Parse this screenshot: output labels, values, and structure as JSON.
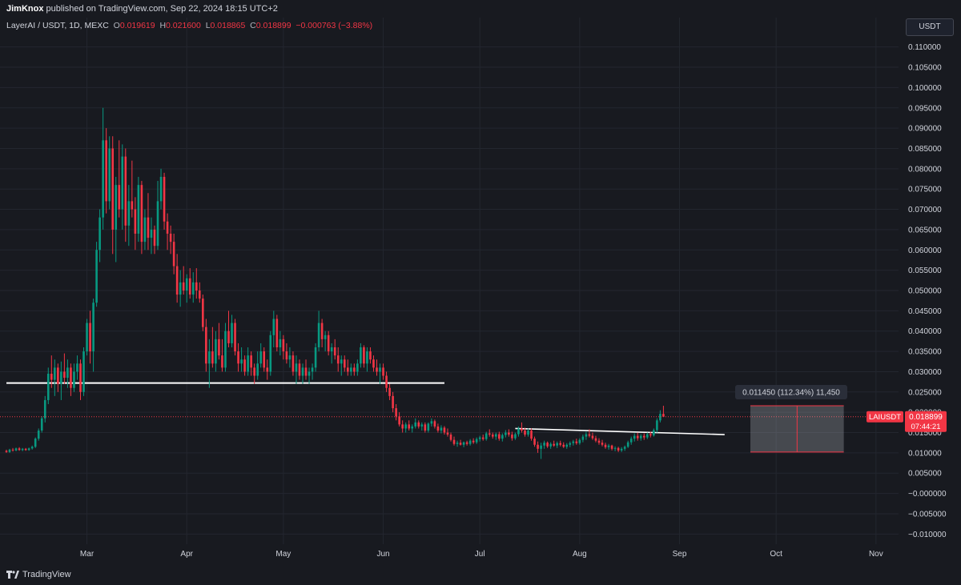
{
  "header": {
    "publisher": "JimKnox",
    "published_text": "published on TradingView.com, Sep 22, 2024 18:15 UTC+2"
  },
  "legend": {
    "symbol_text": "LayerAI / USDT, 1D, MEXC",
    "o_label": "O",
    "o_value": "0.019619",
    "h_label": "H",
    "h_value": "0.021600",
    "l_label": "L",
    "l_value": "0.018865",
    "c_label": "C",
    "c_value": "0.018899",
    "change": "−0.000763 (−3.88%)"
  },
  "currency_button": "USDT",
  "footer": {
    "brand": "TradingView"
  },
  "colors": {
    "background": "#181a20",
    "up": "#089981",
    "down": "#f23645",
    "grid": "#23262f",
    "axis_text": "#d1d4dc",
    "line": "#ffffff"
  },
  "chart_data": {
    "type": "candlestick",
    "symbol": "LAIUSDT",
    "timeframe": "1D",
    "exchange": "MEXC",
    "x_range": [
      "2024-02-05",
      "2024-11-08"
    ],
    "y_range": [
      -0.0125,
      0.1125
    ],
    "y_ticks": [
      0.11,
      0.105,
      0.1,
      0.095,
      0.09,
      0.085,
      0.08,
      0.075,
      0.07,
      0.065,
      0.06,
      0.055,
      0.05,
      0.045,
      0.04,
      0.035,
      0.03,
      0.025,
      0.02,
      0.015,
      0.01,
      0.005,
      0.0,
      -0.005,
      -0.01
    ],
    "y_tick_labels": [
      "0.110000",
      "0.105000",
      "0.100000",
      "0.095000",
      "0.090000",
      "0.085000",
      "0.080000",
      "0.075000",
      "0.070000",
      "0.065000",
      "0.060000",
      "0.055000",
      "0.050000",
      "0.045000",
      "0.040000",
      "0.035000",
      "0.030000",
      "0.025000",
      "0.020000",
      "0.015000",
      "0.010000",
      "0.005000",
      "−0.000000",
      "−0.005000",
      "−0.010000"
    ],
    "x_ticks": [
      {
        "label": "Mar",
        "date": "2024-03-01"
      },
      {
        "label": "Apr",
        "date": "2024-04-01"
      },
      {
        "label": "May",
        "date": "2024-05-01"
      },
      {
        "label": "Jun",
        "date": "2024-06-01"
      },
      {
        "label": "Jul",
        "date": "2024-07-01"
      },
      {
        "label": "Aug",
        "date": "2024-08-01"
      },
      {
        "label": "Sep",
        "date": "2024-09-01"
      },
      {
        "label": "Oct",
        "date": "2024-10-01"
      },
      {
        "label": "Nov",
        "date": "2024-11-01"
      }
    ],
    "first_candle_date": "2024-02-05",
    "candles": [
      [
        0.0105,
        0.0108,
        0.01,
        0.0102
      ],
      [
        0.0102,
        0.011,
        0.01,
        0.0108
      ],
      [
        0.0108,
        0.0112,
        0.0103,
        0.0106
      ],
      [
        0.0106,
        0.0113,
        0.0104,
        0.0111
      ],
      [
        0.0111,
        0.0114,
        0.0105,
        0.0107
      ],
      [
        0.0107,
        0.0112,
        0.0104,
        0.011
      ],
      [
        0.011,
        0.0112,
        0.0105,
        0.0107
      ],
      [
        0.0107,
        0.0113,
        0.0105,
        0.0111
      ],
      [
        0.0111,
        0.0118,
        0.0108,
        0.0115
      ],
      [
        0.0115,
        0.0138,
        0.0112,
        0.0135
      ],
      [
        0.0135,
        0.016,
        0.013,
        0.0155
      ],
      [
        0.0155,
        0.019,
        0.015,
        0.0185
      ],
      [
        0.0185,
        0.024,
        0.0175,
        0.023
      ],
      [
        0.023,
        0.031,
        0.022,
        0.0295
      ],
      [
        0.0295,
        0.034,
        0.026,
        0.028
      ],
      [
        0.028,
        0.033,
        0.024,
        0.031
      ],
      [
        0.031,
        0.032,
        0.025,
        0.027
      ],
      [
        0.027,
        0.0325,
        0.023,
        0.03
      ],
      [
        0.03,
        0.0345,
        0.027,
        0.0285
      ],
      [
        0.0285,
        0.033,
        0.026,
        0.031
      ],
      [
        0.031,
        0.032,
        0.024,
        0.026
      ],
      [
        0.026,
        0.032,
        0.025,
        0.03
      ],
      [
        0.03,
        0.034,
        0.028,
        0.032
      ],
      [
        0.032,
        0.033,
        0.023,
        0.025
      ],
      [
        0.025,
        0.036,
        0.024,
        0.035
      ],
      [
        0.035,
        0.043,
        0.034,
        0.042
      ],
      [
        0.042,
        0.045,
        0.032,
        0.035
      ],
      [
        0.035,
        0.048,
        0.03,
        0.047
      ],
      [
        0.047,
        0.062,
        0.046,
        0.06
      ],
      [
        0.06,
        0.07,
        0.057,
        0.068
      ],
      [
        0.068,
        0.095,
        0.065,
        0.087
      ],
      [
        0.087,
        0.09,
        0.069,
        0.072
      ],
      [
        0.072,
        0.088,
        0.07,
        0.085
      ],
      [
        0.085,
        0.088,
        0.059,
        0.065
      ],
      [
        0.065,
        0.078,
        0.057,
        0.076
      ],
      [
        0.076,
        0.087,
        0.068,
        0.07
      ],
      [
        0.07,
        0.086,
        0.065,
        0.083
      ],
      [
        0.083,
        0.085,
        0.062,
        0.066
      ],
      [
        0.066,
        0.076,
        0.061,
        0.072
      ],
      [
        0.072,
        0.082,
        0.068,
        0.07
      ],
      [
        0.07,
        0.073,
        0.06,
        0.064
      ],
      [
        0.064,
        0.078,
        0.062,
        0.076
      ],
      [
        0.076,
        0.077,
        0.059,
        0.062
      ],
      [
        0.062,
        0.07,
        0.06,
        0.068
      ],
      [
        0.068,
        0.074,
        0.06,
        0.063
      ],
      [
        0.063,
        0.068,
        0.059,
        0.065
      ],
      [
        0.065,
        0.066,
        0.059,
        0.061
      ],
      [
        0.061,
        0.077,
        0.06,
        0.072
      ],
      [
        0.072,
        0.08,
        0.07,
        0.078
      ],
      [
        0.078,
        0.079,
        0.065,
        0.067
      ],
      [
        0.067,
        0.069,
        0.06,
        0.064
      ],
      [
        0.064,
        0.066,
        0.059,
        0.062
      ],
      [
        0.062,
        0.064,
        0.054,
        0.056
      ],
      [
        0.056,
        0.059,
        0.047,
        0.049
      ],
      [
        0.049,
        0.055,
        0.046,
        0.052
      ],
      [
        0.052,
        0.056,
        0.049,
        0.05
      ],
      [
        0.05,
        0.054,
        0.047,
        0.053
      ],
      [
        0.053,
        0.0555,
        0.048,
        0.049
      ],
      [
        0.049,
        0.0545,
        0.047,
        0.052
      ],
      [
        0.052,
        0.0555,
        0.048,
        0.05
      ],
      [
        0.05,
        0.052,
        0.047,
        0.048
      ],
      [
        0.048,
        0.049,
        0.04,
        0.041
      ],
      [
        0.041,
        0.043,
        0.03,
        0.032
      ],
      [
        0.032,
        0.038,
        0.026,
        0.035
      ],
      [
        0.035,
        0.041,
        0.031,
        0.032
      ],
      [
        0.032,
        0.04,
        0.03,
        0.038
      ],
      [
        0.038,
        0.042,
        0.033,
        0.034
      ],
      [
        0.034,
        0.038,
        0.03,
        0.031
      ],
      [
        0.031,
        0.042,
        0.03,
        0.04
      ],
      [
        0.04,
        0.045,
        0.036,
        0.037
      ],
      [
        0.037,
        0.044,
        0.036,
        0.042
      ],
      [
        0.042,
        0.043,
        0.034,
        0.035
      ],
      [
        0.035,
        0.037,
        0.03,
        0.032
      ],
      [
        0.032,
        0.036,
        0.03,
        0.033
      ],
      [
        0.033,
        0.034,
        0.029,
        0.03
      ],
      [
        0.03,
        0.036,
        0.029,
        0.034
      ],
      [
        0.034,
        0.035,
        0.029,
        0.031
      ],
      [
        0.031,
        0.032,
        0.027,
        0.029
      ],
      [
        0.029,
        0.035,
        0.028,
        0.032
      ],
      [
        0.032,
        0.037,
        0.031,
        0.035
      ],
      [
        0.035,
        0.036,
        0.03,
        0.031
      ],
      [
        0.031,
        0.033,
        0.028,
        0.03
      ],
      [
        0.03,
        0.04,
        0.029,
        0.039
      ],
      [
        0.039,
        0.045,
        0.036,
        0.043
      ],
      [
        0.043,
        0.044,
        0.035,
        0.036
      ],
      [
        0.036,
        0.04,
        0.034,
        0.038
      ],
      [
        0.038,
        0.039,
        0.033,
        0.035
      ],
      [
        0.035,
        0.037,
        0.032,
        0.033
      ],
      [
        0.033,
        0.036,
        0.031,
        0.034
      ],
      [
        0.034,
        0.035,
        0.029,
        0.03
      ],
      [
        0.03,
        0.034,
        0.027,
        0.032
      ],
      [
        0.032,
        0.033,
        0.028,
        0.029
      ],
      [
        0.029,
        0.032,
        0.027,
        0.031
      ],
      [
        0.031,
        0.033,
        0.028,
        0.029
      ],
      [
        0.029,
        0.031,
        0.027,
        0.03
      ],
      [
        0.03,
        0.032,
        0.028,
        0.031
      ],
      [
        0.031,
        0.037,
        0.03,
        0.036
      ],
      [
        0.036,
        0.045,
        0.035,
        0.042
      ],
      [
        0.042,
        0.043,
        0.036,
        0.038
      ],
      [
        0.038,
        0.04,
        0.035,
        0.039
      ],
      [
        0.039,
        0.04,
        0.034,
        0.035
      ],
      [
        0.035,
        0.037,
        0.032,
        0.036
      ],
      [
        0.036,
        0.038,
        0.033,
        0.034
      ],
      [
        0.034,
        0.036,
        0.03,
        0.032
      ],
      [
        0.032,
        0.034,
        0.029,
        0.033
      ],
      [
        0.033,
        0.034,
        0.03,
        0.031
      ],
      [
        0.031,
        0.033,
        0.029,
        0.03
      ],
      [
        0.03,
        0.032,
        0.029,
        0.031
      ],
      [
        0.031,
        0.032,
        0.029,
        0.03
      ],
      [
        0.03,
        0.033,
        0.029,
        0.032
      ],
      [
        0.032,
        0.037,
        0.031,
        0.036
      ],
      [
        0.036,
        0.0365,
        0.031,
        0.032
      ],
      [
        0.032,
        0.036,
        0.03,
        0.035
      ],
      [
        0.035,
        0.036,
        0.032,
        0.033
      ],
      [
        0.033,
        0.034,
        0.03,
        0.031
      ],
      [
        0.031,
        0.033,
        0.029,
        0.03
      ],
      [
        0.03,
        0.032,
        0.027,
        0.031
      ],
      [
        0.031,
        0.032,
        0.028,
        0.029
      ],
      [
        0.029,
        0.03,
        0.025,
        0.026
      ],
      [
        0.026,
        0.027,
        0.023,
        0.024
      ],
      [
        0.024,
        0.025,
        0.02,
        0.021
      ],
      [
        0.021,
        0.022,
        0.018,
        0.019
      ],
      [
        0.019,
        0.02,
        0.0165,
        0.017
      ],
      [
        0.017,
        0.018,
        0.015,
        0.016
      ],
      [
        0.016,
        0.0175,
        0.015,
        0.017
      ],
      [
        0.017,
        0.018,
        0.0155,
        0.016
      ],
      [
        0.016,
        0.017,
        0.015,
        0.0165
      ],
      [
        0.0165,
        0.0185,
        0.016,
        0.0175
      ],
      [
        0.0175,
        0.018,
        0.016,
        0.0165
      ],
      [
        0.0165,
        0.0175,
        0.0155,
        0.017
      ],
      [
        0.017,
        0.0175,
        0.015,
        0.0155
      ],
      [
        0.0155,
        0.0175,
        0.015,
        0.0172
      ],
      [
        0.0172,
        0.0185,
        0.0165,
        0.0178
      ],
      [
        0.0178,
        0.0182,
        0.016,
        0.0165
      ],
      [
        0.0165,
        0.0172,
        0.015,
        0.0155
      ],
      [
        0.0155,
        0.0168,
        0.0148,
        0.0162
      ],
      [
        0.0162,
        0.0166,
        0.0145,
        0.015
      ],
      [
        0.015,
        0.016,
        0.014,
        0.0145
      ],
      [
        0.0145,
        0.015,
        0.0128,
        0.0132
      ],
      [
        0.0132,
        0.014,
        0.0118,
        0.0122
      ],
      [
        0.0122,
        0.013,
        0.0115,
        0.0125
      ],
      [
        0.0125,
        0.0132,
        0.0118,
        0.012
      ],
      [
        0.012,
        0.0128,
        0.0114,
        0.0126
      ],
      [
        0.0126,
        0.013,
        0.0118,
        0.0122
      ],
      [
        0.0122,
        0.0134,
        0.0118,
        0.013
      ],
      [
        0.013,
        0.0136,
        0.0122,
        0.0126
      ],
      [
        0.0126,
        0.0138,
        0.0122,
        0.0134
      ],
      [
        0.0134,
        0.0142,
        0.0128,
        0.0138
      ],
      [
        0.0138,
        0.0145,
        0.013,
        0.0134
      ],
      [
        0.0134,
        0.0152,
        0.013,
        0.0148
      ],
      [
        0.0148,
        0.0158,
        0.014,
        0.0145
      ],
      [
        0.0145,
        0.015,
        0.0135,
        0.014
      ],
      [
        0.014,
        0.015,
        0.0132,
        0.0146
      ],
      [
        0.0146,
        0.0152,
        0.013,
        0.0135
      ],
      [
        0.0135,
        0.0148,
        0.0128,
        0.0144
      ],
      [
        0.0144,
        0.0156,
        0.0138,
        0.015
      ],
      [
        0.015,
        0.0158,
        0.014,
        0.0145
      ],
      [
        0.0145,
        0.0152,
        0.013,
        0.0136
      ],
      [
        0.0136,
        0.015,
        0.0132,
        0.0146
      ],
      [
        0.0146,
        0.0165,
        0.014,
        0.016
      ],
      [
        0.016,
        0.0175,
        0.015,
        0.0155
      ],
      [
        0.0155,
        0.0162,
        0.014,
        0.0145
      ],
      [
        0.0145,
        0.016,
        0.014,
        0.0155
      ],
      [
        0.0155,
        0.016,
        0.013,
        0.0135
      ],
      [
        0.0135,
        0.014,
        0.0115,
        0.012
      ],
      [
        0.012,
        0.0128,
        0.01,
        0.011
      ],
      [
        0.011,
        0.0125,
        0.0085,
        0.0118
      ],
      [
        0.0118,
        0.013,
        0.011,
        0.0125
      ],
      [
        0.0125,
        0.0128,
        0.0112,
        0.0116
      ],
      [
        0.0116,
        0.0126,
        0.011,
        0.0122
      ],
      [
        0.0122,
        0.013,
        0.0115,
        0.0118
      ],
      [
        0.0118,
        0.0128,
        0.0112,
        0.0124
      ],
      [
        0.0124,
        0.013,
        0.0116,
        0.012
      ],
      [
        0.012,
        0.0126,
        0.0112,
        0.0115
      ],
      [
        0.0115,
        0.0124,
        0.011,
        0.012
      ],
      [
        0.012,
        0.0128,
        0.0114,
        0.0124
      ],
      [
        0.0124,
        0.0132,
        0.0118,
        0.0128
      ],
      [
        0.0128,
        0.0135,
        0.012,
        0.0124
      ],
      [
        0.0124,
        0.0136,
        0.012,
        0.0132
      ],
      [
        0.0132,
        0.0145,
        0.0126,
        0.014
      ],
      [
        0.014,
        0.0152,
        0.0132,
        0.0146
      ],
      [
        0.0146,
        0.0158,
        0.0138,
        0.0142
      ],
      [
        0.0142,
        0.015,
        0.0132,
        0.0136
      ],
      [
        0.0136,
        0.0142,
        0.0126,
        0.013
      ],
      [
        0.013,
        0.0136,
        0.012,
        0.0125
      ],
      [
        0.0125,
        0.0132,
        0.0116,
        0.012
      ],
      [
        0.012,
        0.0125,
        0.011,
        0.0114
      ],
      [
        0.0114,
        0.0122,
        0.0108,
        0.0118
      ],
      [
        0.0118,
        0.012,
        0.0106,
        0.011
      ],
      [
        0.011,
        0.0116,
        0.0104,
        0.0112
      ],
      [
        0.0112,
        0.0115,
        0.0102,
        0.0106
      ],
      [
        0.0106,
        0.0114,
        0.0102,
        0.011
      ],
      [
        0.011,
        0.0118,
        0.0105,
        0.0115
      ],
      [
        0.0115,
        0.013,
        0.0112,
        0.0126
      ],
      [
        0.0126,
        0.014,
        0.012,
        0.0135
      ],
      [
        0.0135,
        0.0148,
        0.0128,
        0.0142
      ],
      [
        0.0142,
        0.015,
        0.013,
        0.0136
      ],
      [
        0.0136,
        0.0146,
        0.013,
        0.0142
      ],
      [
        0.0142,
        0.0148,
        0.0132,
        0.0138
      ],
      [
        0.0138,
        0.015,
        0.0134,
        0.0146
      ],
      [
        0.0146,
        0.0152,
        0.0138,
        0.0143
      ],
      [
        0.0143,
        0.016,
        0.014,
        0.0156
      ],
      [
        0.0156,
        0.0185,
        0.015,
        0.018
      ],
      [
        0.018,
        0.0205,
        0.0175,
        0.0196
      ],
      [
        0.0196,
        0.0216,
        0.0189,
        0.0189
      ]
    ],
    "horizontal_line": {
      "value": 0.0272,
      "start_date": "2024-02-05",
      "end_date": "2024-06-20"
    },
    "trend_line": {
      "start_date": "2024-07-12",
      "start_value": 0.016,
      "end_date": "2024-09-15",
      "end_value": 0.0145
    },
    "measure_box": {
      "start_date": "2024-09-23",
      "end_date": "2024-10-22",
      "low": 0.0102,
      "high": 0.0216,
      "label": "0.011450 (112.34%) 11,450"
    },
    "current_price": {
      "symbol_label": "LAIUSDT",
      "value": 0.018899,
      "label": "0.018899",
      "countdown": "07:44:21"
    }
  }
}
